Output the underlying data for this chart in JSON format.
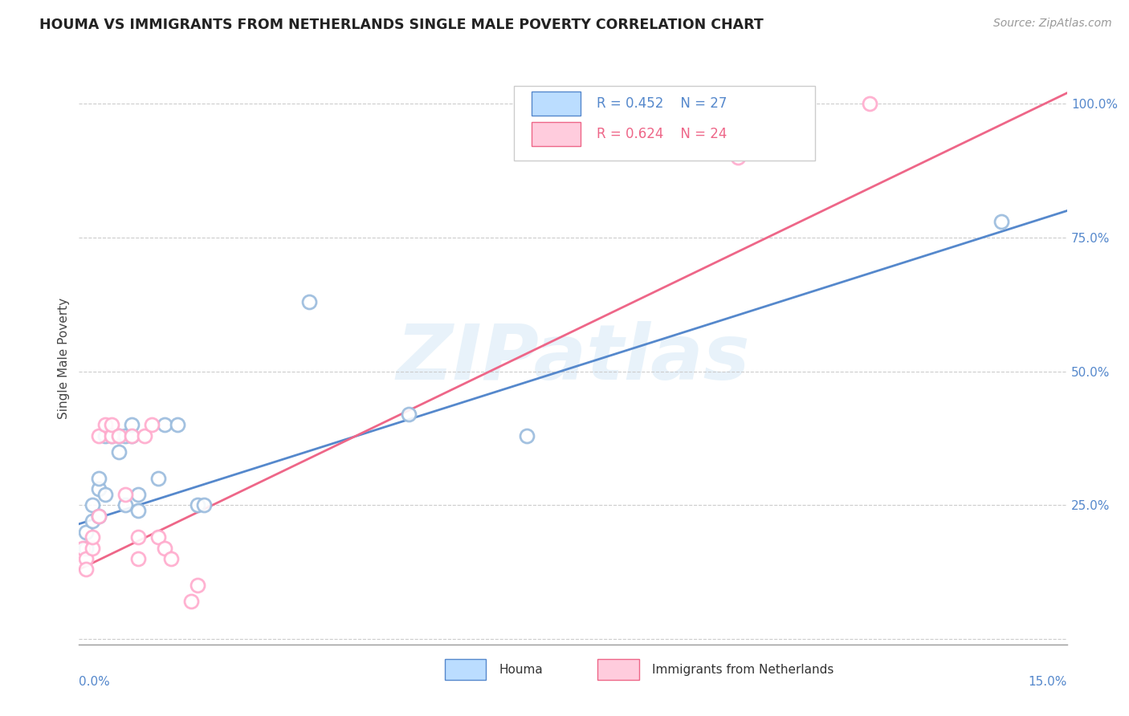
{
  "title": "HOUMA VS IMMIGRANTS FROM NETHERLANDS SINGLE MALE POVERTY CORRELATION CHART",
  "source": "Source: ZipAtlas.com",
  "ylabel": "Single Male Poverty",
  "watermark": "ZIPatlas",
  "xlim": [
    0.0,
    0.15
  ],
  "ylim": [
    -0.01,
    1.06
  ],
  "yticks": [
    0.0,
    0.25,
    0.5,
    0.75,
    1.0
  ],
  "ytick_labels": [
    "",
    "25.0%",
    "50.0%",
    "75.0%",
    "100.0%"
  ],
  "blue_scatter_color": "#99BBDD",
  "pink_scatter_color": "#FFAACC",
  "blue_line_color": "#5588CC",
  "pink_line_color": "#EE6688",
  "legend_blue_fill": "#BBDDFF",
  "legend_pink_fill": "#FFCCDD",
  "houma_x": [
    0.001,
    0.001,
    0.002,
    0.002,
    0.003,
    0.003,
    0.003,
    0.004,
    0.004,
    0.005,
    0.006,
    0.006,
    0.007,
    0.007,
    0.008,
    0.008,
    0.009,
    0.009,
    0.012,
    0.013,
    0.015,
    0.018,
    0.019,
    0.035,
    0.05,
    0.068,
    0.14
  ],
  "houma_y": [
    0.2,
    0.17,
    0.22,
    0.25,
    0.28,
    0.3,
    0.23,
    0.27,
    0.38,
    0.38,
    0.38,
    0.35,
    0.25,
    0.38,
    0.38,
    0.4,
    0.27,
    0.24,
    0.3,
    0.4,
    0.4,
    0.25,
    0.25,
    0.63,
    0.42,
    0.38,
    0.78
  ],
  "nl_x": [
    0.0005,
    0.001,
    0.001,
    0.002,
    0.002,
    0.003,
    0.003,
    0.004,
    0.005,
    0.005,
    0.006,
    0.007,
    0.008,
    0.009,
    0.009,
    0.01,
    0.011,
    0.012,
    0.013,
    0.014,
    0.017,
    0.018,
    0.1,
    0.12
  ],
  "nl_y": [
    0.17,
    0.15,
    0.13,
    0.17,
    0.19,
    0.23,
    0.38,
    0.4,
    0.38,
    0.4,
    0.38,
    0.27,
    0.38,
    0.15,
    0.19,
    0.38,
    0.4,
    0.19,
    0.17,
    0.15,
    0.07,
    0.1,
    0.9,
    1.0
  ],
  "houma_trend_x0": 0.0,
  "houma_trend_x1": 0.15,
  "houma_trend_y0": 0.215,
  "houma_trend_y1": 0.8,
  "nl_trend_x0": 0.0,
  "nl_trend_x1": 0.15,
  "nl_trend_y0": 0.13,
  "nl_trend_y1": 1.02,
  "R_houma": "0.452",
  "N_houma": "27",
  "R_nl": "0.624",
  "N_nl": "24"
}
